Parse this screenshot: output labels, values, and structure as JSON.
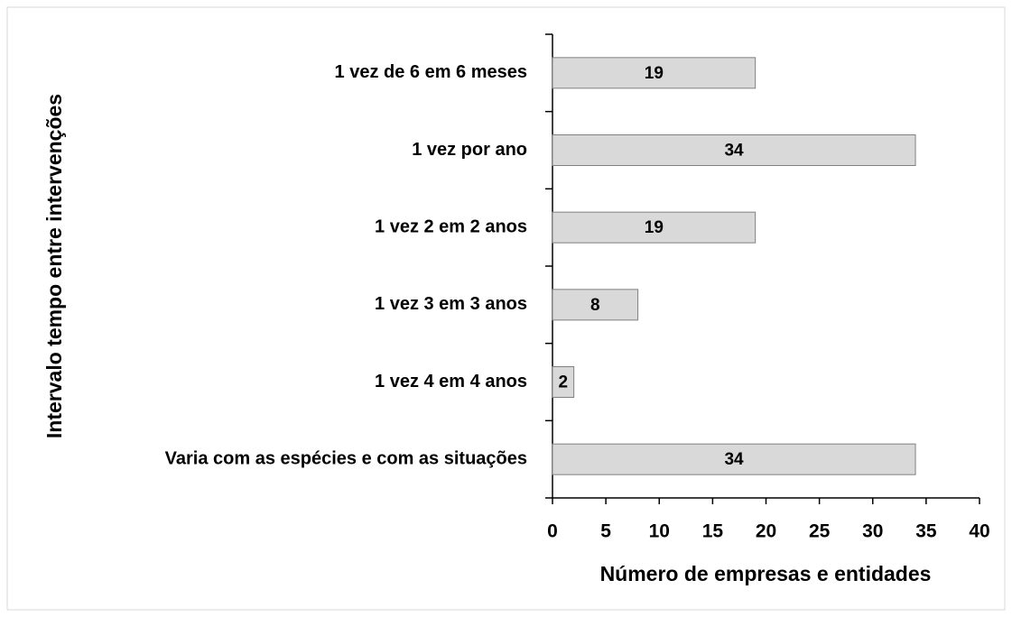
{
  "chart_data": {
    "type": "bar",
    "orientation": "horizontal",
    "x_label": "Número de empresas e entidades",
    "y_label": "Intervalo tempo entre intervenções",
    "categories": [
      "1 vez de 6 em 6 meses",
      "1 vez por ano",
      "1 vez 2 em 2 anos",
      "1 vez 3 em 3 anos",
      "1 vez 4 em 4 anos",
      "Varia com as espécies e com as situações"
    ],
    "values": [
      19,
      34,
      19,
      8,
      2,
      34
    ],
    "color": "#d9d9d9",
    "xlim": [
      0,
      40
    ],
    "xticks": [
      0,
      5,
      10,
      15,
      20,
      25,
      30,
      35,
      40
    ],
    "grid": false
  }
}
